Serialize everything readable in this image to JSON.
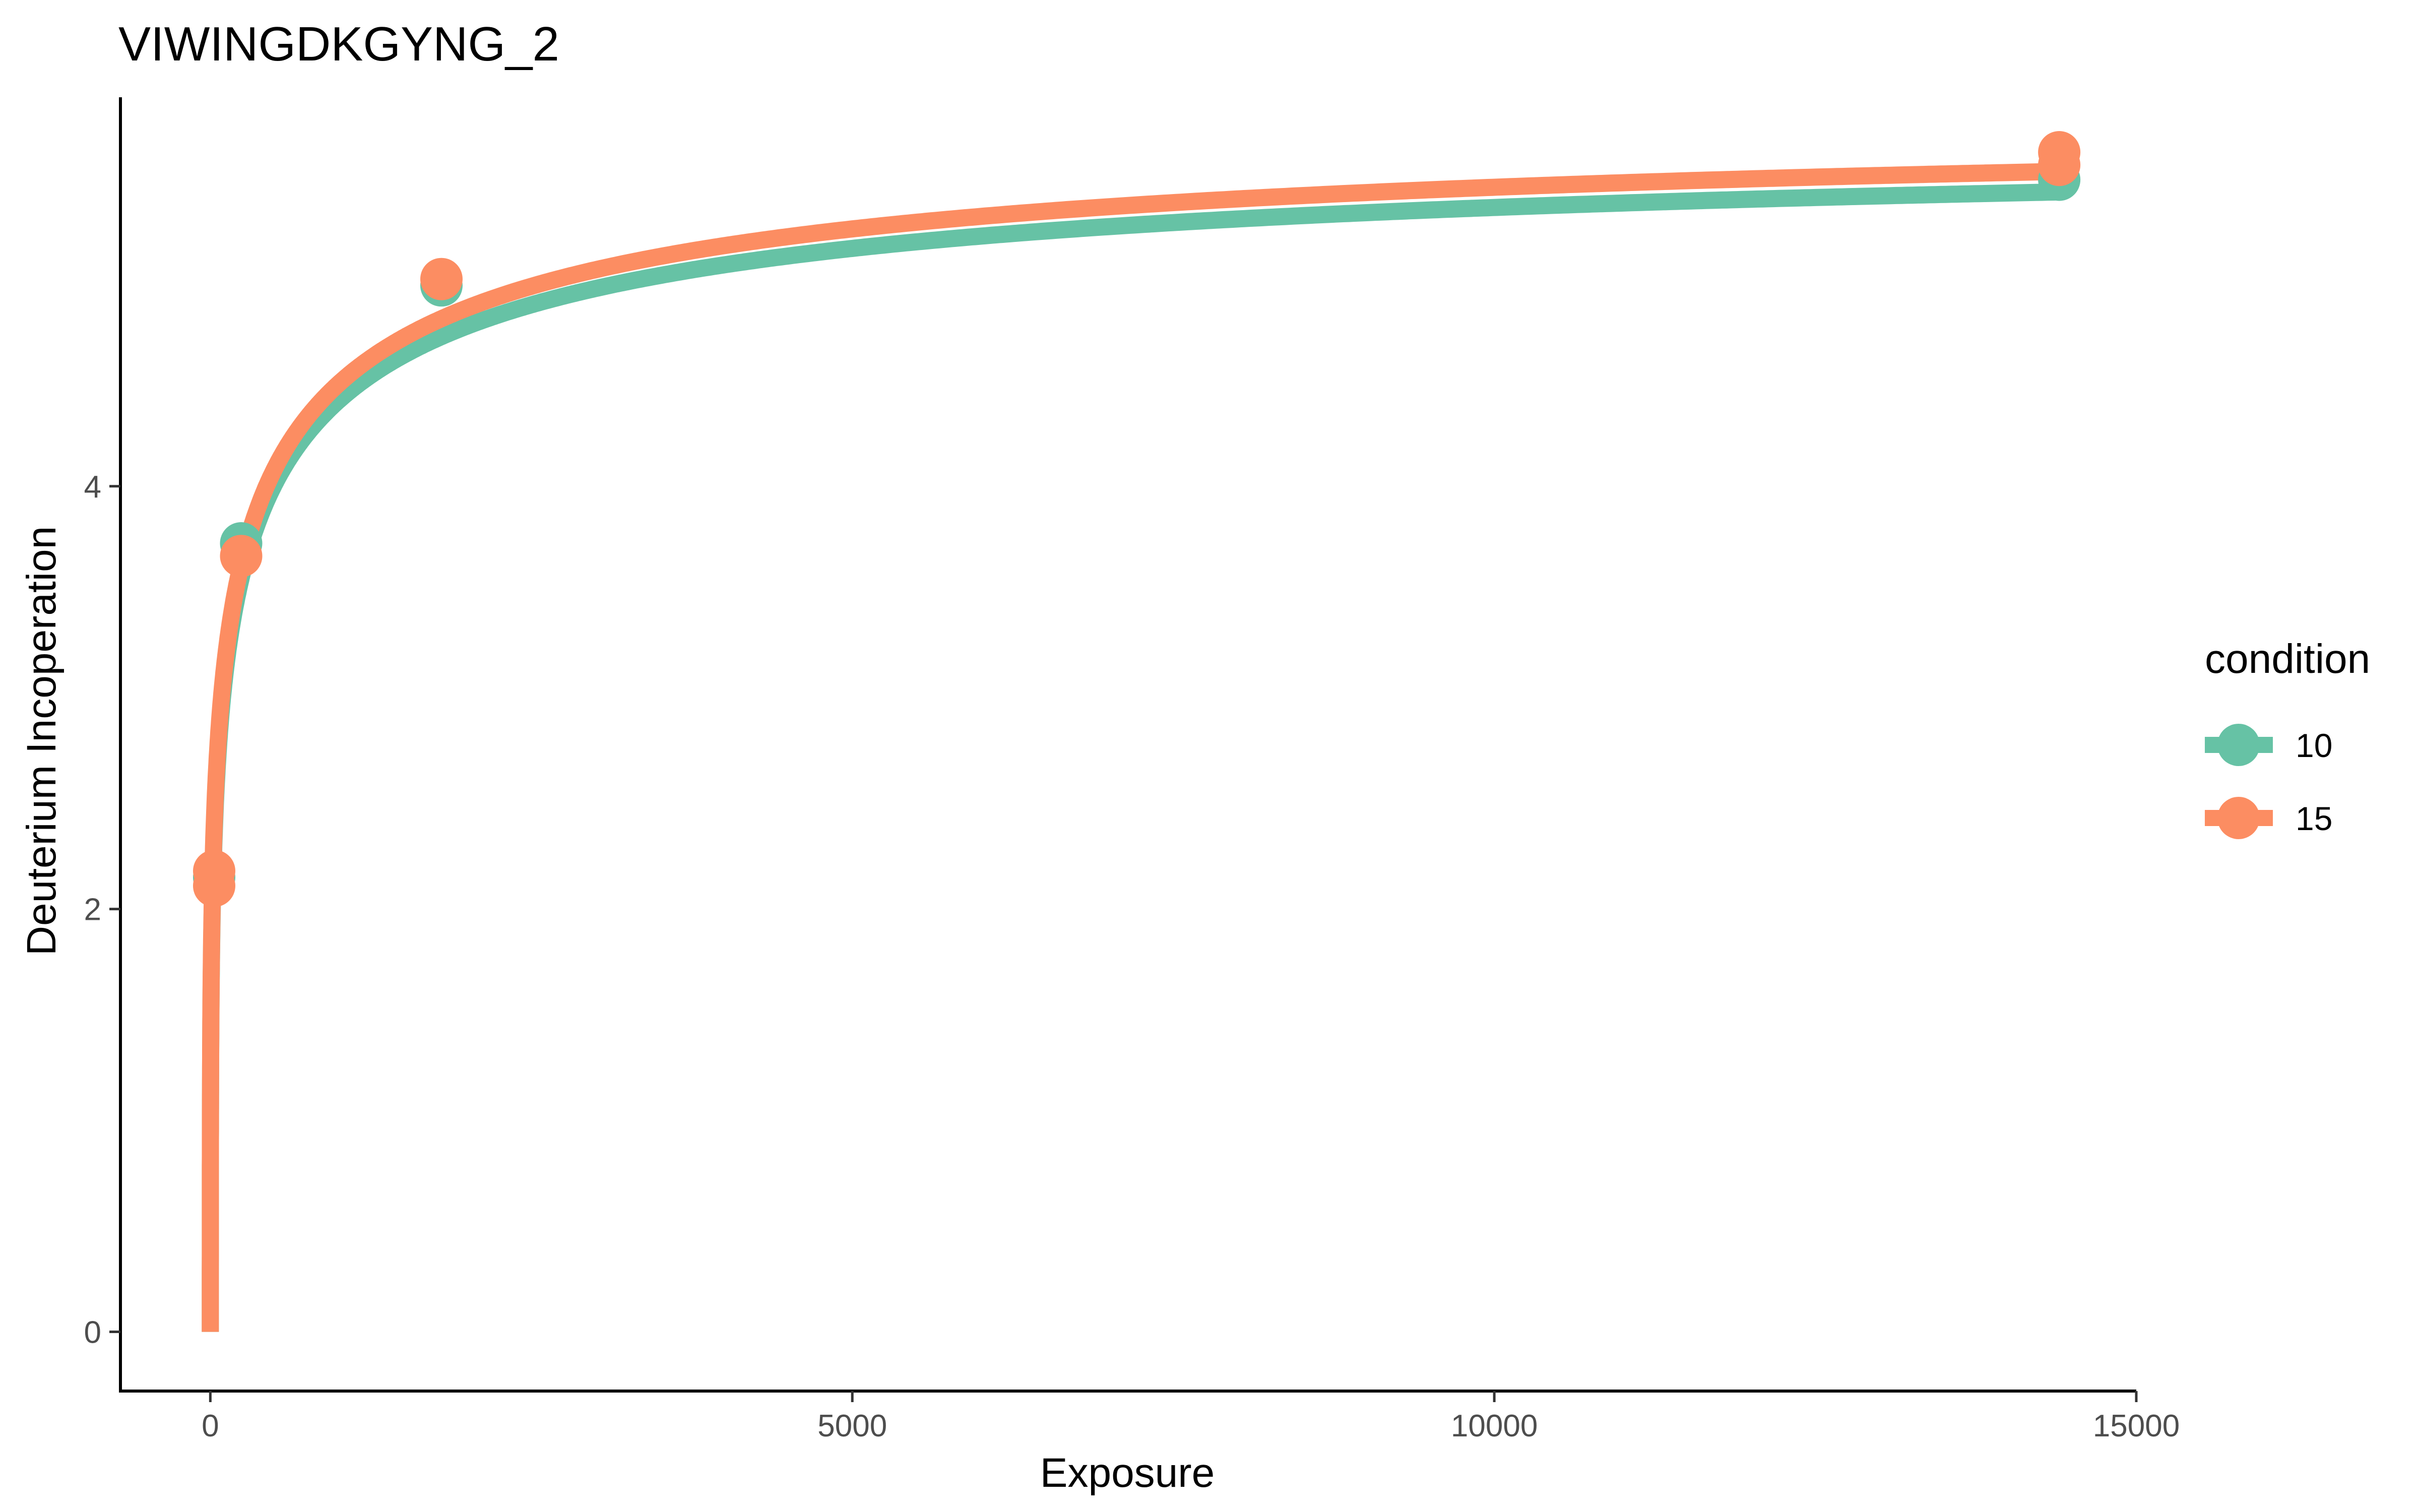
{
  "chart_data": {
    "type": "line",
    "title": "VIWINGDKGYNG_2",
    "xlabel": "Exposure",
    "ylabel": "Deuterium Incoperation",
    "xlim": [
      -700,
      15000
    ],
    "ylim": [
      -0.28,
      5.84
    ],
    "x_ticks": [
      0,
      5000,
      10000,
      15000
    ],
    "y_ticks": [
      0,
      2,
      4
    ],
    "grid": false,
    "legend": {
      "title": "condition",
      "position": "right",
      "entries": [
        "10",
        "15"
      ]
    },
    "series": [
      {
        "name": "10",
        "color": "#66C2A5",
        "points": [
          {
            "x": 0,
            "y": 0
          },
          {
            "x": 30,
            "y": 2.15
          },
          {
            "x": 240,
            "y": 3.73
          },
          {
            "x": 1800,
            "y": 4.95
          },
          {
            "x": 14400,
            "y": 5.45
          }
        ],
        "fit": {
          "d_max": 5.56,
          "k": 0.00452,
          "p": 0.3
        }
      },
      {
        "name": "15",
        "color": "#FC8D62",
        "points": [
          {
            "x": 0,
            "y": 0
          },
          {
            "x": 30,
            "y": 2.18
          },
          {
            "x": 30,
            "y": 2.11
          },
          {
            "x": 240,
            "y": 3.67
          },
          {
            "x": 1800,
            "y": 4.98
          },
          {
            "x": 14400,
            "y": 5.58
          },
          {
            "x": 14400,
            "y": 5.52
          }
        ],
        "fit": {
          "d_max": 5.66,
          "k": 0.00452,
          "p": 0.3
        }
      }
    ]
  }
}
